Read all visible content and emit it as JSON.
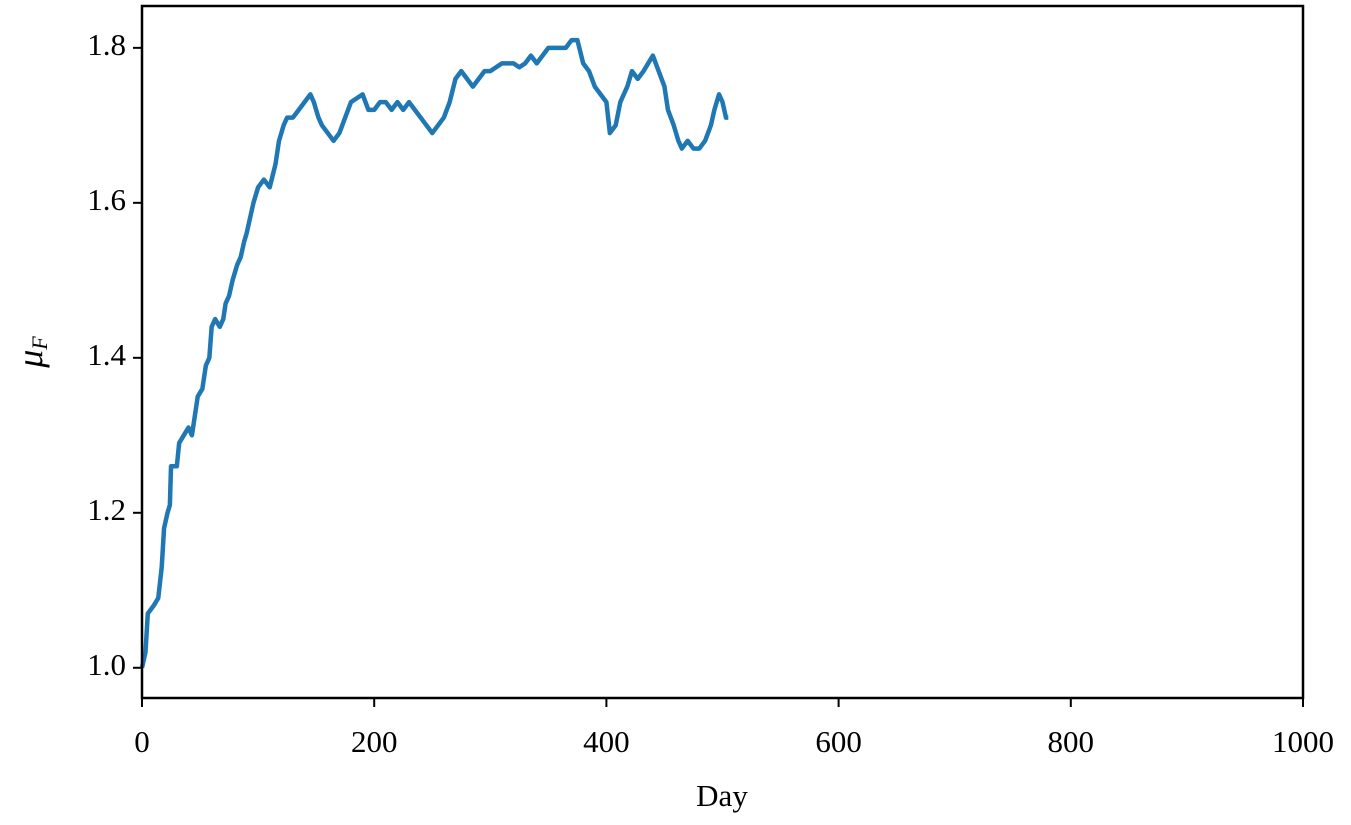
{
  "chart_data": {
    "type": "line",
    "x_label": "Day",
    "y_label_symbol": "μ",
    "y_label_subscript": "F",
    "xlim": [
      0,
      1000
    ],
    "xticks": [
      0,
      200,
      400,
      600,
      800,
      1000
    ],
    "ylim": [
      0.961,
      1.854
    ],
    "yticks": [
      {
        "value": 1.0,
        "label": "1.0"
      },
      1.2,
      1.4,
      1.6,
      1.8
    ],
    "x": [
      0,
      3,
      5,
      10,
      14,
      17,
      19,
      22,
      24,
      25,
      30,
      32,
      36,
      40,
      43,
      45,
      48,
      52,
      55,
      58,
      60,
      63,
      67,
      70,
      72,
      75,
      78,
      82,
      85,
      88,
      90,
      93,
      96,
      100,
      105,
      110,
      115,
      118,
      122,
      125,
      130,
      135,
      140,
      145,
      148,
      152,
      155,
      160,
      165,
      170,
      175,
      180,
      185,
      190,
      195,
      200,
      205,
      210,
      215,
      220,
      225,
      230,
      235,
      240,
      245,
      250,
      255,
      260,
      265,
      270,
      275,
      280,
      285,
      290,
      295,
      300,
      305,
      310,
      315,
      320,
      325,
      330,
      335,
      340,
      345,
      350,
      355,
      360,
      365,
      370,
      375,
      380,
      385,
      390,
      395,
      400,
      403,
      408,
      412,
      418,
      422,
      427,
      432,
      436,
      440,
      445,
      450,
      453,
      458,
      462,
      465,
      470,
      475,
      480,
      485,
      490,
      493,
      497,
      500,
      503,
      505
    ],
    "series": [
      {
        "color": "#1f77b4",
        "values": [
          1.0,
          1.02,
          1.07,
          1.08,
          1.09,
          1.13,
          1.18,
          1.2,
          1.21,
          1.26,
          1.26,
          1.29,
          1.3,
          1.31,
          1.3,
          1.32,
          1.35,
          1.36,
          1.39,
          1.4,
          1.44,
          1.45,
          1.44,
          1.45,
          1.47,
          1.48,
          1.5,
          1.52,
          1.53,
          1.55,
          1.56,
          1.58,
          1.6,
          1.62,
          1.63,
          1.62,
          1.65,
          1.68,
          1.7,
          1.71,
          1.71,
          1.72,
          1.73,
          1.74,
          1.73,
          1.71,
          1.7,
          1.69,
          1.68,
          1.69,
          1.71,
          1.73,
          1.735,
          1.74,
          1.72,
          1.72,
          1.73,
          1.73,
          1.72,
          1.73,
          1.72,
          1.73,
          1.72,
          1.71,
          1.7,
          1.69,
          1.7,
          1.71,
          1.73,
          1.76,
          1.77,
          1.76,
          1.75,
          1.76,
          1.77,
          1.77,
          1.775,
          1.78,
          1.78,
          1.78,
          1.775,
          1.78,
          1.79,
          1.78,
          1.79,
          1.8,
          1.8,
          1.8,
          1.8,
          1.81,
          1.81,
          1.78,
          1.77,
          1.75,
          1.74,
          1.73,
          1.69,
          1.7,
          1.73,
          1.75,
          1.77,
          1.76,
          1.77,
          1.78,
          1.79,
          1.77,
          1.75,
          1.72,
          1.7,
          1.68,
          1.67,
          1.68,
          1.67,
          1.67,
          1.68,
          1.7,
          1.72,
          1.74,
          1.73,
          1.71,
          1.71
        ]
      }
    ]
  }
}
